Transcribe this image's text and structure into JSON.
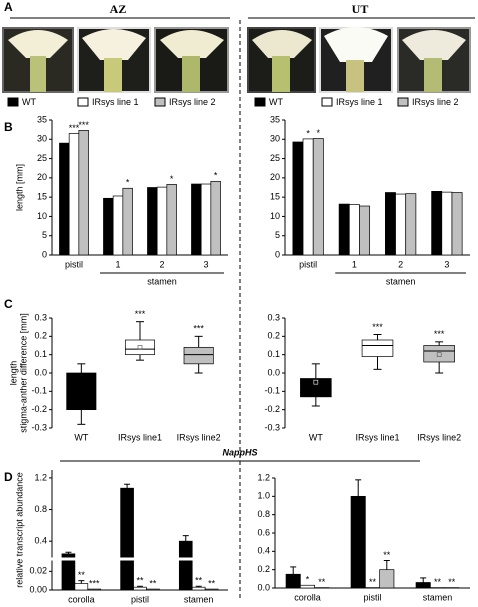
{
  "figure": {
    "panel_labels": [
      "A",
      "B",
      "C",
      "D"
    ],
    "groups": [
      "AZ",
      "UT"
    ],
    "gene": "NappHS"
  },
  "chart_data": [
    {
      "type": "bar",
      "y_label": "length [mm]",
      "categories": [
        "pistil",
        "1",
        "2",
        "3"
      ],
      "category_group": "stamen",
      "ylim": [
        0,
        35
      ],
      "yticks": [
        0,
        5,
        10,
        15,
        20,
        25,
        30,
        35
      ],
      "series": [
        {
          "name": "WT",
          "color": "#000000",
          "values": [
            29,
            14.7,
            17.5,
            18.4
          ]
        },
        {
          "name": "IRsys line 1",
          "color": "#ffffff",
          "values": [
            31.5,
            15.3,
            17.6,
            18.4
          ],
          "significance": [
            "***",
            null,
            null,
            null
          ]
        },
        {
          "name": "IRsys line 2",
          "color": "#c0c0c0",
          "values": [
            32.3,
            17.3,
            18.3,
            19.1
          ],
          "significance": [
            "***",
            "*",
            "*",
            "*"
          ]
        }
      ]
    },
    {
      "type": "bar",
      "categories": [
        "pistil",
        "1",
        "2",
        "3"
      ],
      "category_group": "stamen",
      "ylim": [
        0,
        35
      ],
      "yticks": [
        0,
        5,
        10,
        15,
        20,
        25,
        30,
        35
      ],
      "series": [
        {
          "name": "WT",
          "color": "#000000",
          "values": [
            29.3,
            13.2,
            16.2,
            16.5
          ]
        },
        {
          "name": "IRsys line 1",
          "color": "#ffffff",
          "values": [
            30.1,
            13.1,
            15.8,
            16.3
          ],
          "significance": [
            "*",
            null,
            null,
            null
          ]
        },
        {
          "name": "IRsys line 2",
          "color": "#c0c0c0",
          "values": [
            30.2,
            12.7,
            15.9,
            16.2
          ],
          "significance": [
            "*",
            null,
            null,
            null
          ]
        }
      ]
    },
    {
      "type": "box",
      "y_label": [
        "length",
        "stigma-anther difference [mm]"
      ],
      "categories": [
        "WT",
        "IRsys line1",
        "IRsys line2"
      ],
      "ylim": [
        -0.3,
        0.3
      ],
      "yticks": [
        -0.3,
        -0.2,
        -0.1,
        {
          "value": 0,
          "label": "0.0"
        },
        0.1,
        0.2,
        0.3
      ],
      "boxes": [
        {
          "color": "#000000",
          "min": -0.28,
          "q1": -0.2,
          "median": -0.1,
          "q3": 0,
          "max": 0.05
        },
        {
          "color": "#ffffff",
          "min": 0.07,
          "q1": 0.1,
          "median": 0.13,
          "q3": 0.18,
          "max": 0.28,
          "mean": 0.14,
          "significance": "***"
        },
        {
          "color": "#c0c0c0",
          "min": 0,
          "q1": 0.05,
          "median": 0.1,
          "q3": 0.14,
          "max": 0.2,
          "significance": "***"
        }
      ]
    },
    {
      "type": "box",
      "categories": [
        "WT",
        "IRsys line1",
        "IRsys line2"
      ],
      "ylim": [
        -0.3,
        0.3
      ],
      "yticks": [
        -0.3,
        -0.2,
        -0.1,
        {
          "value": 0,
          "label": "0.0"
        },
        0.1,
        0.2,
        0.3
      ],
      "boxes": [
        {
          "color": "#000000",
          "min": -0.18,
          "q1": -0.13,
          "median": -0.05,
          "q3": -0.03,
          "max": 0.05,
          "mean": -0.05
        },
        {
          "color": "#ffffff",
          "min": 0.02,
          "q1": 0.09,
          "median": 0.15,
          "q3": 0.18,
          "max": 0.21,
          "significance": "***"
        },
        {
          "color": "#c0c0c0",
          "min": 0,
          "q1": 0.06,
          "median": 0.12,
          "q3": 0.15,
          "max": 0.17,
          "mean": 0.1,
          "significance": "***"
        }
      ]
    },
    {
      "type": "bar",
      "y_label": "relative transcript abundance",
      "categories": [
        "corolla",
        "pistil",
        "stamen"
      ],
      "ylim": [
        0,
        1.3
      ],
      "break": [
        0.03,
        0.2
      ],
      "yticks": [
        {
          "value": 0,
          "label": "0.00"
        },
        0.02,
        0.4,
        0.8,
        1.2
      ],
      "series": [
        {
          "color": "#000000",
          "values": [
            0.24,
            1.07,
            0.4
          ],
          "errors": [
            0.02,
            0.05,
            0.07
          ]
        },
        {
          "color": "#ffffff",
          "values": [
            0.007,
            0.003,
            0.003
          ],
          "errors": [
            0.003,
            0.001,
            0.001
          ],
          "significance": [
            "**",
            "**",
            "**"
          ]
        },
        {
          "color": "#c0c0c0",
          "values": [
            0.001,
            0.001,
            0.001
          ],
          "significance": [
            "***",
            "**",
            "**"
          ]
        }
      ]
    },
    {
      "type": "bar",
      "categories": [
        "corolla",
        "pistil",
        "stamen"
      ],
      "ylim": [
        0,
        1.2
      ],
      "yticks": [
        {
          "value": 0,
          "label": "0.0"
        },
        0.2,
        0.4,
        0.6,
        0.8,
        {
          "value": 1,
          "label": "1.0"
        },
        1.2
      ],
      "series": [
        {
          "color": "#000000",
          "values": [
            0.15,
            1.0,
            0.06
          ],
          "errors": [
            0.08,
            0.18,
            0.05
          ]
        },
        {
          "color": "#ffffff",
          "values": [
            0.03,
            0.004,
            0.004
          ],
          "significance": [
            "*",
            "**",
            "**"
          ]
        },
        {
          "color": "#c0c0c0",
          "values": [
            0.004,
            0.2,
            0.004
          ],
          "errors": [
            null,
            0.1,
            null
          ],
          "significance": [
            "**",
            "**",
            "**"
          ]
        }
      ]
    }
  ]
}
